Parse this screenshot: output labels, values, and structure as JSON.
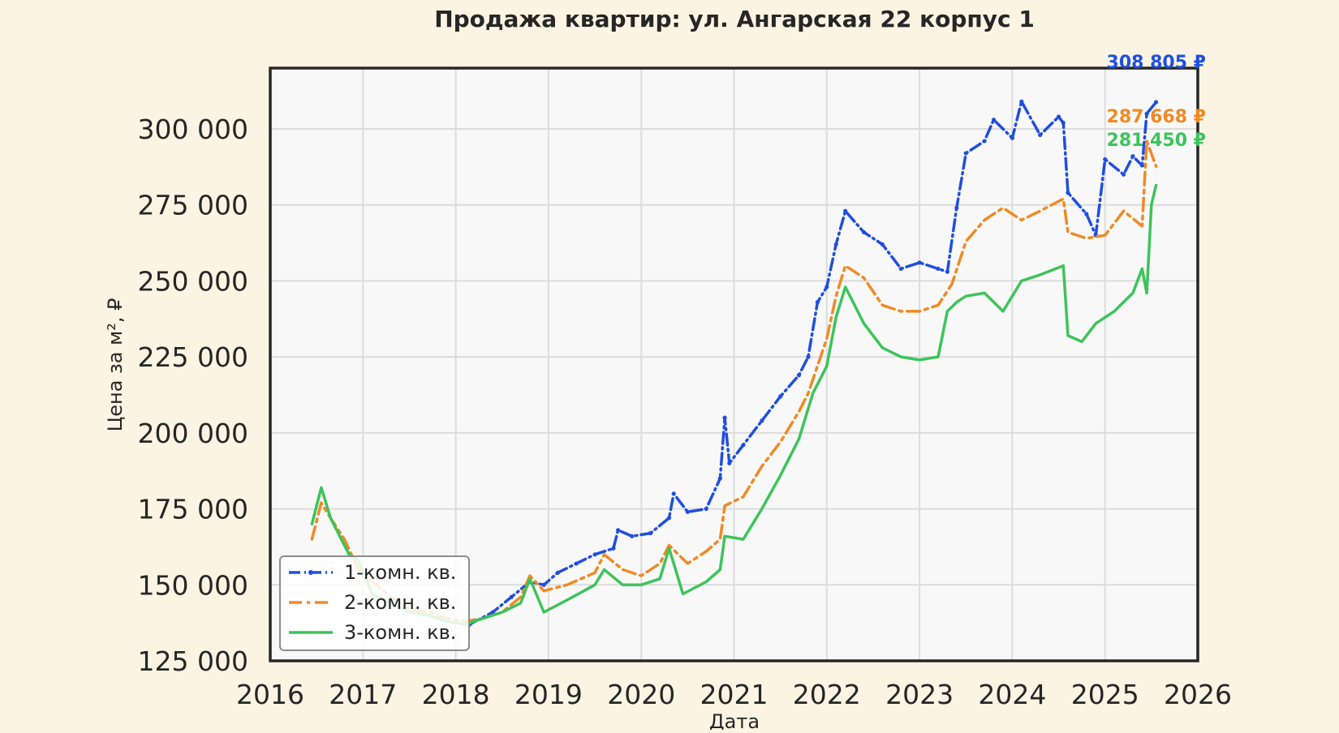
{
  "chart_data": {
    "type": "line",
    "title": "Продажа квартир: ул. Ангарская 22 корпус 1",
    "xlabel": "Дата",
    "ylabel": "Цена за м², ₽",
    "xlim": [
      2016,
      2026
    ],
    "ylim": [
      125000,
      320000
    ],
    "x_ticks": [
      "2016",
      "2017",
      "2018",
      "2019",
      "2020",
      "2021",
      "2022",
      "2023",
      "2024",
      "2025",
      "2026"
    ],
    "y_ticks": [
      "125 000",
      "150 000",
      "175 000",
      "200 000",
      "225 000",
      "250 000",
      "275 000",
      "300 000"
    ],
    "grid": true,
    "legend_position": "bottom-left",
    "series": [
      {
        "name": "1-комн. кв.",
        "color": "#1f4fe0",
        "line_style": "dashdot-marker",
        "end_label": "308 805 ₽",
        "x": [
          2018.15,
          2018.4,
          2018.6,
          2018.8,
          2018.95,
          2019.1,
          2019.3,
          2019.5,
          2019.7,
          2019.75,
          2019.9,
          2020.1,
          2020.3,
          2020.35,
          2020.5,
          2020.7,
          2020.85,
          2020.9,
          2020.95,
          2021.1,
          2021.3,
          2021.5,
          2021.7,
          2021.8,
          2021.9,
          2022.0,
          2022.1,
          2022.2,
          2022.4,
          2022.6,
          2022.8,
          2023.0,
          2023.2,
          2023.3,
          2023.4,
          2023.5,
          2023.7,
          2023.8,
          2024.0,
          2024.1,
          2024.3,
          2024.5,
          2024.55,
          2024.6,
          2024.8,
          2024.9,
          2025.0,
          2025.2,
          2025.3,
          2025.4,
          2025.45,
          2025.55
        ],
        "y": [
          137000,
          141000,
          146000,
          151000,
          150000,
          154000,
          157000,
          160000,
          162000,
          168000,
          166000,
          167000,
          172000,
          180000,
          174000,
          175000,
          185000,
          205000,
          190000,
          196000,
          204000,
          212000,
          219000,
          225000,
          243000,
          248000,
          262000,
          273000,
          266000,
          262000,
          254000,
          256000,
          254000,
          253000,
          274000,
          292000,
          296000,
          303000,
          297000,
          309000,
          298000,
          304000,
          302000,
          279000,
          272000,
          265000,
          290000,
          285000,
          291000,
          288000,
          305000,
          308805
        ]
      },
      {
        "name": "2-комн. кв.",
        "color": "#f08a24",
        "line_style": "dashdot",
        "end_label": "287 668 ₽",
        "x": [
          2016.45,
          2016.55,
          2016.65,
          2016.8,
          2016.95,
          2017.1,
          2017.3,
          2017.5,
          2017.7,
          2017.9,
          2018.1,
          2018.3,
          2018.5,
          2018.7,
          2018.8,
          2018.95,
          2019.2,
          2019.5,
          2019.6,
          2019.8,
          2020.0,
          2020.2,
          2020.3,
          2020.5,
          2020.7,
          2020.85,
          2020.9,
          2021.1,
          2021.3,
          2021.5,
          2021.7,
          2021.8,
          2022.0,
          2022.1,
          2022.2,
          2022.4,
          2022.6,
          2022.8,
          2023.0,
          2023.2,
          2023.35,
          2023.5,
          2023.7,
          2023.9,
          2024.1,
          2024.3,
          2024.55,
          2024.6,
          2024.8,
          2025.0,
          2025.2,
          2025.4,
          2025.45,
          2025.55
        ],
        "y": [
          165000,
          177000,
          172000,
          165000,
          155000,
          151000,
          146000,
          142000,
          141000,
          139000,
          138000,
          139000,
          141000,
          146000,
          153000,
          148000,
          150000,
          154000,
          160000,
          155000,
          153000,
          157000,
          163000,
          157000,
          161000,
          165000,
          176000,
          179000,
          189000,
          197000,
          207000,
          213000,
          231000,
          245000,
          255000,
          251000,
          242000,
          240000,
          240000,
          242000,
          249000,
          263000,
          270000,
          274000,
          270000,
          273000,
          277000,
          266000,
          264000,
          265000,
          273000,
          268000,
          296000,
          287668
        ]
      },
      {
        "name": "3-комн. кв.",
        "color": "#3dc45a",
        "line_style": "solid",
        "end_label": "281 450 ₽",
        "x": [
          2016.45,
          2016.55,
          2016.65,
          2016.75,
          2016.85,
          2016.95,
          2017.1,
          2017.3,
          2017.5,
          2017.7,
          2017.9,
          2018.1,
          2018.3,
          2018.5,
          2018.7,
          2018.8,
          2018.95,
          2019.2,
          2019.5,
          2019.6,
          2019.8,
          2020.0,
          2020.2,
          2020.3,
          2020.45,
          2020.7,
          2020.85,
          2020.9,
          2021.1,
          2021.3,
          2021.5,
          2021.7,
          2021.85,
          2022.0,
          2022.1,
          2022.2,
          2022.4,
          2022.6,
          2022.8,
          2023.0,
          2023.2,
          2023.3,
          2023.4,
          2023.5,
          2023.7,
          2023.9,
          2024.1,
          2024.3,
          2024.55,
          2024.6,
          2024.75,
          2024.9,
          2025.1,
          2025.3,
          2025.4,
          2025.45,
          2025.5,
          2025.55
        ],
        "y": [
          170000,
          182000,
          172000,
          166000,
          160000,
          158000,
          147000,
          144000,
          141000,
          140000,
          138000,
          137000,
          139000,
          141000,
          144000,
          152000,
          141000,
          145000,
          150000,
          155000,
          150000,
          150000,
          152000,
          162000,
          147000,
          151000,
          155000,
          166000,
          165000,
          175000,
          186000,
          198000,
          213000,
          222000,
          238000,
          248000,
          236000,
          228000,
          225000,
          224000,
          225000,
          240000,
          243000,
          245000,
          246000,
          240000,
          250000,
          252000,
          255000,
          232000,
          230000,
          236000,
          240000,
          246000,
          254000,
          246000,
          275000,
          281450
        ]
      }
    ]
  }
}
